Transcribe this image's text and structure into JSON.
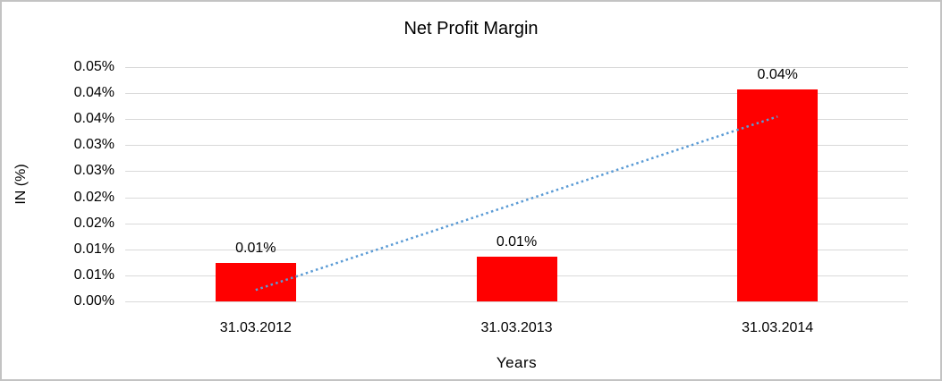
{
  "chart_data": {
    "type": "bar",
    "title": "Net Profit Margin",
    "xlabel": "Years",
    "ylabel": "IN (%)",
    "categories": [
      "31.03.2012",
      "31.03.2013",
      "31.03.2014"
    ],
    "values": [
      0.0074,
      0.0086,
      0.0407
    ],
    "value_unit": "%",
    "data_labels": [
      "0.01%",
      "0.01%",
      "0.04%"
    ],
    "y_ticks_top_to_bottom": [
      "0.05%",
      "0.04%",
      "0.04%",
      "0.03%",
      "0.03%",
      "0.02%",
      "0.02%",
      "0.01%",
      "0.01%",
      "0.00%"
    ],
    "ylim": [
      0,
      0.045
    ],
    "y_tick_step_actual": 0.005,
    "grid": true,
    "legend": false,
    "bar_color": "#ff0000",
    "gridline_color": "#d9d9d9",
    "trendline": {
      "type": "linear",
      "style": "dotted",
      "color": "#5b9bd5",
      "start_value": 0.0022,
      "end_value": 0.0355
    }
  }
}
